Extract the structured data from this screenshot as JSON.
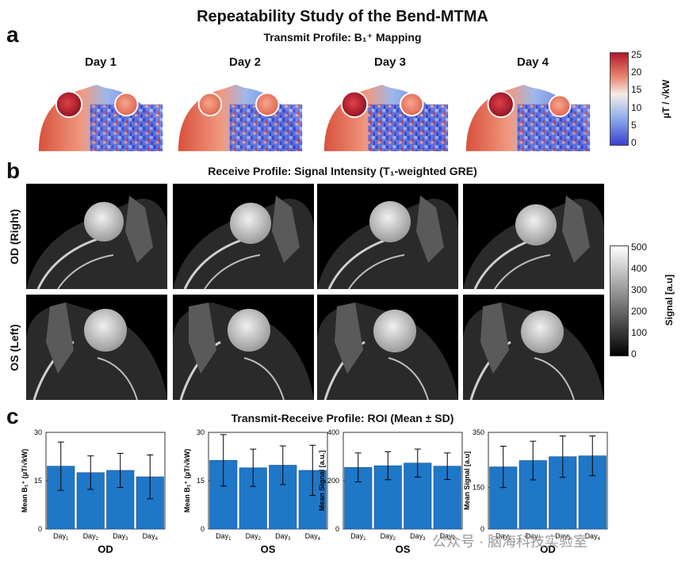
{
  "title": "Repeatability Study of the Bend-MTMA",
  "panel_a": {
    "letter": "a",
    "subtitle": "Transmit Profile: B₁⁺ Mapping",
    "days": [
      "Day 1",
      "Day 2",
      "Day 3",
      "Day 4"
    ],
    "colorbar": {
      "ticks": [
        "25",
        "20",
        "15",
        "10",
        "5",
        "0"
      ],
      "label": "µT / √kW",
      "colors": [
        "#b2182b",
        "#f4a582",
        "#f7f7f7",
        "#92c5de",
        "#2166ac",
        "#3a3acc"
      ]
    }
  },
  "panel_b": {
    "letter": "b",
    "subtitle": "Receive Profile: Signal Intensity (T₁-weighted GRE)",
    "rows": [
      "OD (Right)",
      "OS (Left)"
    ],
    "colorbar": {
      "ticks": [
        "500",
        "400",
        "300",
        "200",
        "100",
        "0"
      ],
      "label": "Signal [a.u]"
    }
  },
  "panel_c": {
    "letter": "c",
    "subtitle": "Transmit-Receive Profile: ROI (Mean ± SD)",
    "bar_color": "#1f77c8"
  },
  "chart_data": [
    {
      "type": "bar",
      "title": "OD",
      "ylabel": "Mean B₁⁺ (µT/√kW)",
      "categories": [
        "Day",
        "Day",
        "Day",
        "Day"
      ],
      "category_subscripts": [
        "1",
        "2",
        "3",
        "4"
      ],
      "values": [
        19.5,
        17.5,
        18.2,
        16.2
      ],
      "errors": [
        7.5,
        5.2,
        5.3,
        6.8
      ],
      "ylim": [
        0,
        30
      ],
      "yticks": [
        "0",
        "15",
        "30"
      ]
    },
    {
      "type": "bar",
      "title": "OS",
      "ylabel": "Mean B₁⁺ (µT/√kW)",
      "categories": [
        "Day",
        "Day",
        "Day",
        "Day"
      ],
      "category_subscripts": [
        "1",
        "2",
        "3",
        "4"
      ],
      "values": [
        21.3,
        19.0,
        19.8,
        18.2
      ],
      "errors": [
        8.0,
        5.8,
        6.0,
        7.8
      ],
      "ylim": [
        0,
        30
      ],
      "yticks": [
        "0",
        "15",
        "30"
      ]
    },
    {
      "type": "bar",
      "title": "OS",
      "ylabel": "Mean Signal [a.u.]",
      "categories": [
        "Day",
        "Day",
        "Day",
        "Day"
      ],
      "category_subscripts": [
        "1",
        "2",
        "3",
        "4"
      ],
      "values": [
        255,
        262,
        273,
        260
      ],
      "errors": [
        60,
        58,
        58,
        55
      ],
      "ylim": [
        0,
        400
      ],
      "yticks": [
        "0",
        "200",
        "400"
      ]
    },
    {
      "type": "bar",
      "title": "OD",
      "ylabel": "Mean Signal [a.u]",
      "categories": [
        "Day",
        "Day",
        "Day",
        "Day"
      ],
      "category_subscripts": [
        "1",
        "2",
        "3",
        "4"
      ],
      "values": [
        225,
        248,
        262,
        265
      ],
      "errors": [
        75,
        70,
        75,
        72
      ],
      "ylim": [
        0,
        350
      ],
      "yticks": [
        "0",
        "150",
        "350"
      ]
    }
  ],
  "watermark": "公众号 · 脑海科技实验室"
}
